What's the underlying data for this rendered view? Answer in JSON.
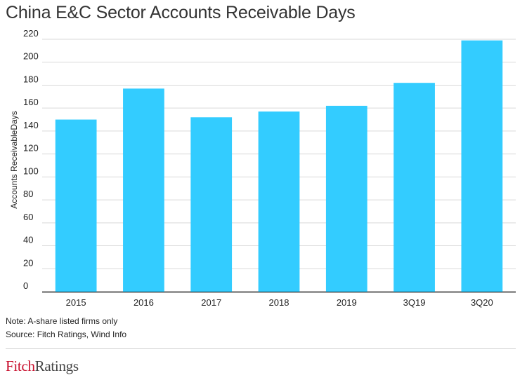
{
  "header": {
    "title": "China E&C Sector Accounts Receivable Days"
  },
  "chart_data": {
    "type": "bar",
    "title": "China E&C Sector Accounts Receivable Days",
    "categories": [
      "2015",
      "2016",
      "2017",
      "2018",
      "2019",
      "3Q19",
      "3Q20"
    ],
    "values": [
      150,
      177,
      152,
      157,
      162,
      182,
      219
    ],
    "xlabel": "",
    "ylabel": "Accounts ReceivableDays",
    "ylim": [
      0,
      220
    ],
    "yticks": [
      0,
      20,
      40,
      60,
      80,
      100,
      120,
      140,
      160,
      180,
      200,
      220
    ],
    "grid": true,
    "bar_color": "#33ccff"
  },
  "footer": {
    "note": "Note: A-share listed firms only",
    "source": "Source: Fitch Ratings, Wind Info",
    "logo_part1": "Fitch",
    "logo_part2": "Ratings"
  },
  "colors": {
    "accent": "#33ccff",
    "brand_red": "#c8102e",
    "grid": "#d9d9d9"
  }
}
